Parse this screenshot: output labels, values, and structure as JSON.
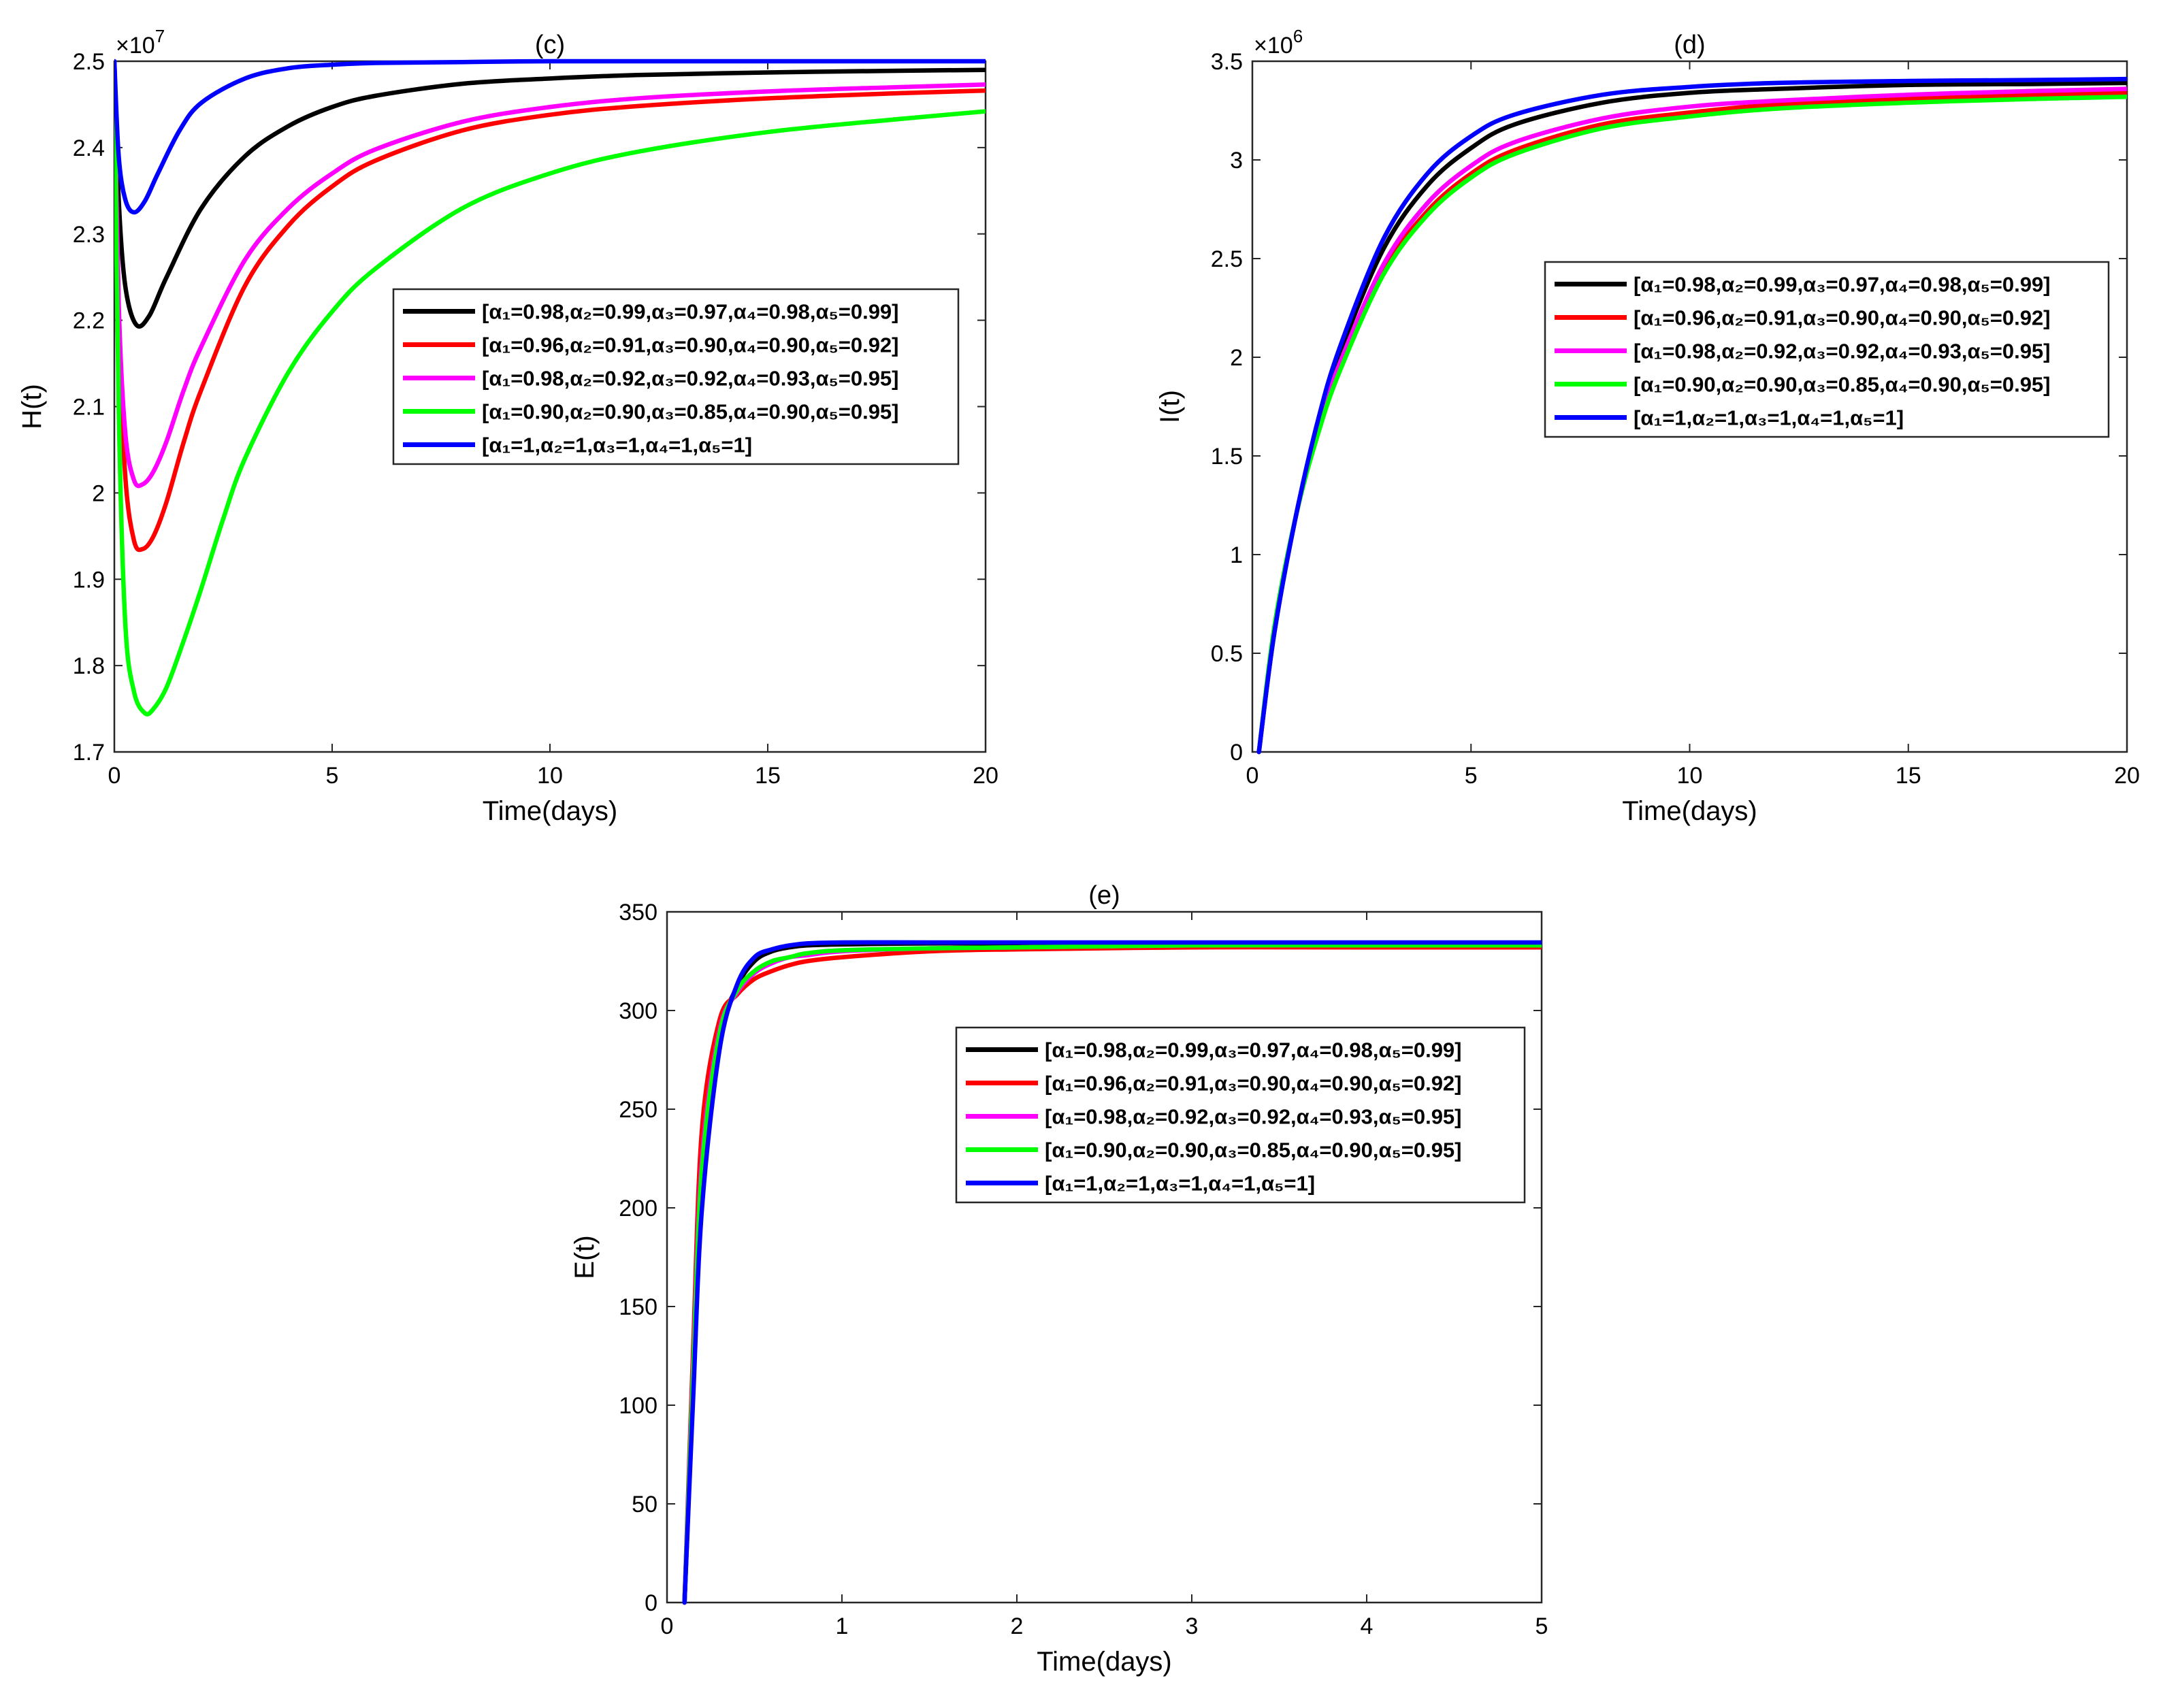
{
  "legend_labels": [
    "[α₁=0.98,α₂=0.99,α₃=0.97,α₄=0.98,α₅=0.99]",
    "[α₁=0.96,α₂=0.91,α₃=0.90,α₄=0.90,α₅=0.92]",
    "[α₁=0.98,α₂=0.92,α₃=0.92,α₄=0.93,α₅=0.95]",
    "[α₁=0.90,α₂=0.90,α₃=0.85,α₄=0.90,α₅=0.95]",
    "[α₁=1,α₂=1,α₃=1,α₄=1,α₅=1]"
  ],
  "series_colors": [
    "#000000",
    "#ff0000",
    "#ff00ff",
    "#00ff00",
    "#0000ff"
  ],
  "chart_data": [
    {
      "id": "c",
      "type": "line",
      "title": "(c)",
      "xlabel": "Time(days)",
      "ylabel": "H(t)",
      "xlim": [
        0,
        20
      ],
      "ylim": [
        1.7,
        2.5
      ],
      "xticks": [
        0,
        5,
        10,
        15,
        20
      ],
      "yticks": [
        1.7,
        1.8,
        1.9,
        2.0,
        2.1,
        2.2,
        2.3,
        2.4,
        2.5
      ],
      "ytick_labels": [
        "1.7",
        "1.8",
        "1.9",
        "2",
        "2.1",
        "2.2",
        "2.3",
        "2.4",
        "2.5"
      ],
      "y_exponent": "7",
      "legend_position": "right-middle",
      "series": [
        {
          "name": "[α₁=0.98,α₂=0.99,α₃=0.97,α₄=0.98,α₅=0.99]",
          "color": "#000000",
          "x": [
            0,
            0.1,
            0.25,
            0.5,
            0.8,
            1.2,
            2,
            3,
            4,
            5,
            6,
            8,
            10,
            12,
            15,
            18,
            20
          ],
          "y": [
            2.5,
            2.34,
            2.24,
            2.195,
            2.205,
            2.25,
            2.33,
            2.39,
            2.425,
            2.447,
            2.46,
            2.474,
            2.48,
            2.484,
            2.487,
            2.489,
            2.49
          ]
        },
        {
          "name": "[α₁=0.96,α₂=0.91,α₃=0.90,α₄=0.90,α₅=0.92]",
          "color": "#ff0000",
          "x": [
            0,
            0.1,
            0.25,
            0.45,
            0.65,
            0.9,
            1.2,
            1.6,
            2,
            3,
            4,
            5,
            6,
            8,
            10,
            12,
            15,
            18,
            20
          ],
          "y": [
            2.5,
            2.2,
            2.02,
            1.945,
            1.935,
            1.95,
            1.99,
            2.06,
            2.12,
            2.24,
            2.31,
            2.355,
            2.385,
            2.42,
            2.438,
            2.448,
            2.457,
            2.463,
            2.466
          ]
        },
        {
          "name": "[α₁=0.98,α₂=0.92,α₃=0.92,α₄=0.93,α₅=0.95]",
          "color": "#ff00ff",
          "x": [
            0,
            0.1,
            0.25,
            0.45,
            0.65,
            0.9,
            1.2,
            1.6,
            2,
            3,
            4,
            5,
            6,
            8,
            10,
            12,
            15,
            18,
            20
          ],
          "y": [
            2.5,
            2.22,
            2.07,
            2.015,
            2.01,
            2.025,
            2.06,
            2.12,
            2.17,
            2.27,
            2.33,
            2.37,
            2.398,
            2.43,
            2.447,
            2.457,
            2.465,
            2.47,
            2.473
          ]
        },
        {
          "name": "[α₁=0.90,α₂=0.90,α₃=0.85,α₄=0.90,α₅=0.95]",
          "color": "#00ff00",
          "x": [
            0,
            0.1,
            0.25,
            0.45,
            0.7,
            0.9,
            1.2,
            1.6,
            2,
            2.5,
            3,
            4,
            5,
            6,
            8,
            10,
            12,
            15,
            18,
            20
          ],
          "y": [
            2.5,
            2.1,
            1.85,
            1.77,
            1.745,
            1.75,
            1.775,
            1.83,
            1.89,
            1.97,
            2.04,
            2.14,
            2.21,
            2.26,
            2.33,
            2.37,
            2.395,
            2.418,
            2.433,
            2.442
          ]
        },
        {
          "name": "[α₁=1,α₂=1,α₃=1,α₄=1,α₅=1]",
          "color": "#0000ff",
          "x": [
            0,
            0.1,
            0.25,
            0.45,
            0.7,
            1.0,
            1.5,
            2,
            3,
            4,
            5,
            6,
            8,
            10,
            15,
            20
          ],
          "y": [
            2.5,
            2.39,
            2.34,
            2.325,
            2.338,
            2.37,
            2.42,
            2.452,
            2.48,
            2.492,
            2.496,
            2.498,
            2.499,
            2.5,
            2.5,
            2.5
          ]
        }
      ]
    },
    {
      "id": "d",
      "type": "line",
      "title": "(d)",
      "xlabel": "Time(days)",
      "ylabel": "I(t)",
      "xlim": [
        0,
        20
      ],
      "ylim": [
        0,
        3.5
      ],
      "xticks": [
        0,
        5,
        10,
        15,
        20
      ],
      "yticks": [
        0,
        0.5,
        1,
        1.5,
        2,
        2.5,
        3,
        3.5
      ],
      "ytick_labels": [
        "0",
        "0.5",
        "1",
        "1.5",
        "2",
        "2.5",
        "3",
        "3.5"
      ],
      "y_exponent": "6",
      "legend_position": "right-middle",
      "series": [
        {
          "name": "[α₁=0.98,α₂=0.99,α₃=0.97,α₄=0.98,α₅=0.99]",
          "color": "#000000",
          "x": [
            0.15,
            0.5,
            1,
            1.5,
            2,
            3,
            4,
            5,
            6,
            8,
            10,
            12,
            15,
            18,
            20
          ],
          "y": [
            0,
            0.6,
            1.2,
            1.66,
            2.02,
            2.55,
            2.87,
            3.06,
            3.18,
            3.29,
            3.34,
            3.36,
            3.38,
            3.385,
            3.39
          ]
        },
        {
          "name": "[α₁=0.96,α₂=0.91,α₃=0.90,α₄=0.90,α₅=0.92]",
          "color": "#ff0000",
          "x": [
            0.15,
            0.5,
            1,
            1.5,
            2,
            3,
            4,
            5,
            6,
            8,
            10,
            12,
            15,
            18,
            20
          ],
          "y": [
            0,
            0.62,
            1.2,
            1.62,
            1.95,
            2.44,
            2.74,
            2.93,
            3.05,
            3.18,
            3.24,
            3.28,
            3.31,
            3.33,
            3.34
          ]
        },
        {
          "name": "[α₁=0.98,α₂=0.92,α₃=0.92,α₄=0.93,α₅=0.95]",
          "color": "#ff00ff",
          "x": [
            0.15,
            0.5,
            1,
            1.5,
            2,
            3,
            4,
            5,
            6,
            8,
            10,
            12,
            15,
            18,
            20
          ],
          "y": [
            0,
            0.61,
            1.2,
            1.63,
            1.97,
            2.47,
            2.78,
            2.97,
            3.09,
            3.21,
            3.27,
            3.3,
            3.33,
            3.35,
            3.36
          ]
        },
        {
          "name": "[α₁=0.90,α₂=0.90,α₃=0.85,α₄=0.90,α₅=0.95]",
          "color": "#00ff00",
          "x": [
            0.15,
            0.5,
            1,
            1.5,
            2,
            3,
            4,
            5,
            6,
            8,
            10,
            12,
            15,
            18,
            20
          ],
          "y": [
            0,
            0.63,
            1.2,
            1.61,
            1.93,
            2.42,
            2.72,
            2.91,
            3.03,
            3.16,
            3.22,
            3.26,
            3.29,
            3.31,
            3.32
          ]
        },
        {
          "name": "[α₁=1,α₂=1,α₃=1,α₄=1,α₅=1]",
          "color": "#0000ff",
          "x": [
            0.15,
            0.5,
            1,
            1.5,
            2,
            3,
            4,
            5,
            6,
            8,
            10,
            12,
            15,
            18,
            20
          ],
          "y": [
            0,
            0.6,
            1.2,
            1.68,
            2.05,
            2.6,
            2.93,
            3.12,
            3.23,
            3.33,
            3.37,
            3.39,
            3.4,
            3.405,
            3.41
          ]
        }
      ]
    },
    {
      "id": "e",
      "type": "line",
      "title": "(e)",
      "xlabel": "Time(days)",
      "ylabel": "E(t)",
      "xlim": [
        0,
        5
      ],
      "ylim": [
        0,
        350
      ],
      "xticks": [
        0,
        1,
        2,
        3,
        4,
        5
      ],
      "yticks": [
        0,
        50,
        100,
        150,
        200,
        250,
        300,
        350
      ],
      "ytick_labels": [
        "0",
        "50",
        "100",
        "150",
        "200",
        "250",
        "300",
        "350"
      ],
      "y_exponent": "",
      "legend_position": "right-middle",
      "series": [
        {
          "name": "[α₁=0.98,α₂=0.99,α₃=0.97,α₄=0.98,α₅=0.99]",
          "color": "#000000",
          "x": [
            0.1,
            0.15,
            0.2,
            0.3,
            0.4,
            0.5,
            0.6,
            0.7,
            0.8,
            1,
            1.5,
            2,
            3,
            4,
            5
          ],
          "y": [
            0,
            110,
            205,
            285,
            312,
            325,
            330,
            332,
            333,
            333.5,
            334,
            334,
            334,
            334,
            334
          ]
        },
        {
          "name": "[α₁=0.96,α₂=0.91,α₃=0.90,α₄=0.90,α₅=0.92]",
          "color": "#ff0000",
          "x": [
            0.1,
            0.15,
            0.2,
            0.3,
            0.4,
            0.5,
            0.6,
            0.7,
            0.8,
            1,
            1.5,
            2,
            3,
            4,
            5
          ],
          "y": [
            0,
            130,
            240,
            295,
            308,
            316,
            320,
            323,
            325,
            327,
            330,
            331,
            332,
            332,
            332
          ]
        },
        {
          "name": "[α₁=0.98,α₂=0.92,α₃=0.92,α₄=0.93,α₅=0.95]",
          "color": "#ff00ff",
          "x": [
            0.1,
            0.15,
            0.2,
            0.3,
            0.4,
            0.5,
            0.6,
            0.7,
            0.8,
            1,
            1.5,
            2,
            3,
            4,
            5
          ],
          "y": [
            0,
            122,
            225,
            290,
            309,
            319,
            324,
            327,
            328,
            330,
            331.5,
            332,
            333,
            333,
            333
          ]
        },
        {
          "name": "[α₁=0.90,α₂=0.90,α₃=0.85,α₄=0.90,α₅=0.95]",
          "color": "#00ff00",
          "x": [
            0.1,
            0.15,
            0.2,
            0.3,
            0.4,
            0.5,
            0.6,
            0.7,
            0.8,
            1,
            1.5,
            2,
            3,
            4,
            5
          ],
          "y": [
            0,
            118,
            220,
            288,
            310,
            320,
            325,
            327,
            329,
            330.5,
            331.5,
            332,
            333,
            333,
            333
          ]
        },
        {
          "name": "[α₁=1,α₂=1,α₃=1,α₄=1,α₅=1]",
          "color": "#0000ff",
          "x": [
            0.1,
            0.15,
            0.2,
            0.3,
            0.4,
            0.5,
            0.6,
            0.7,
            0.8,
            1,
            1.5,
            2,
            3,
            4,
            5
          ],
          "y": [
            0,
            105,
            200,
            280,
            313,
            327,
            331,
            333,
            334,
            334.5,
            334.5,
            334.5,
            334.5,
            334.5,
            334.5
          ]
        }
      ]
    }
  ]
}
